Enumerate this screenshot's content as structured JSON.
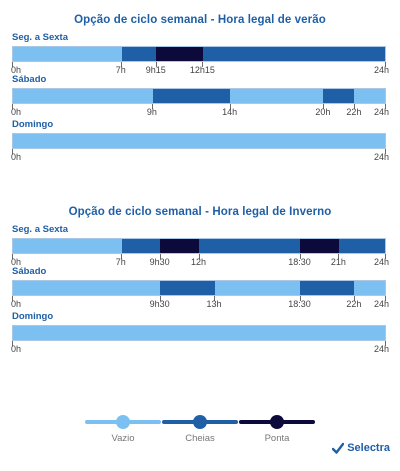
{
  "colors": {
    "vazio": "#7cc0f2",
    "cheias": "#1f5fa6",
    "ponta": "#0b0a3a"
  },
  "legend": [
    {
      "key": "vazio",
      "label": "Vazio"
    },
    {
      "key": "cheias",
      "label": "Cheias"
    },
    {
      "key": "ponta",
      "label": "Ponta"
    }
  ],
  "brand": {
    "name": "Selectra"
  },
  "chart_data": [
    {
      "type": "bar",
      "title": "Opção de ciclo semanal - Hora legal de verão",
      "rows": [
        {
          "label": "Seg. a Sexta",
          "segments": [
            {
              "start": 0,
              "end": 7,
              "period": "vazio"
            },
            {
              "start": 7,
              "end": 9.25,
              "period": "cheias"
            },
            {
              "start": 9.25,
              "end": 12.25,
              "period": "ponta"
            },
            {
              "start": 12.25,
              "end": 24,
              "period": "cheias"
            }
          ],
          "ticks": [
            {
              "value": 0,
              "label": "0h"
            },
            {
              "value": 7,
              "label": "7h"
            },
            {
              "value": 9.25,
              "label": "9h15"
            },
            {
              "value": 12.25,
              "label": "12h15"
            },
            {
              "value": 24,
              "label": "24h"
            }
          ]
        },
        {
          "label": "Sábado",
          "segments": [
            {
              "start": 0,
              "end": 9,
              "period": "vazio"
            },
            {
              "start": 9,
              "end": 14,
              "period": "cheias"
            },
            {
              "start": 14,
              "end": 20,
              "period": "vazio"
            },
            {
              "start": 20,
              "end": 22,
              "period": "cheias"
            },
            {
              "start": 22,
              "end": 24,
              "period": "vazio"
            }
          ],
          "ticks": [
            {
              "value": 0,
              "label": "0h"
            },
            {
              "value": 9,
              "label": "9h"
            },
            {
              "value": 14,
              "label": "14h"
            },
            {
              "value": 20,
              "label": "20h"
            },
            {
              "value": 22,
              "label": "22h"
            },
            {
              "value": 24,
              "label": "24h"
            }
          ]
        },
        {
          "label": "Domingo",
          "segments": [
            {
              "start": 0,
              "end": 24,
              "period": "vazio"
            }
          ],
          "ticks": [
            {
              "value": 0,
              "label": "0h"
            },
            {
              "value": 24,
              "label": "24h"
            }
          ]
        }
      ]
    },
    {
      "type": "bar",
      "title": "Opção de ciclo semanal - Hora legal de Inverno",
      "rows": [
        {
          "label": "Seg. a Sexta",
          "segments": [
            {
              "start": 0,
              "end": 7,
              "period": "vazio"
            },
            {
              "start": 7,
              "end": 9.5,
              "period": "cheias"
            },
            {
              "start": 9.5,
              "end": 12,
              "period": "ponta"
            },
            {
              "start": 12,
              "end": 18.5,
              "period": "cheias"
            },
            {
              "start": 18.5,
              "end": 21,
              "period": "ponta"
            },
            {
              "start": 21,
              "end": 24,
              "period": "cheias"
            }
          ],
          "ticks": [
            {
              "value": 0,
              "label": "0h"
            },
            {
              "value": 7,
              "label": "7h"
            },
            {
              "value": 9.5,
              "label": "9h30"
            },
            {
              "value": 12,
              "label": "12h"
            },
            {
              "value": 18.5,
              "label": "18:30"
            },
            {
              "value": 21,
              "label": "21h"
            },
            {
              "value": 24,
              "label": "24h"
            }
          ]
        },
        {
          "label": "Sábado",
          "segments": [
            {
              "start": 0,
              "end": 9.5,
              "period": "vazio"
            },
            {
              "start": 9.5,
              "end": 13,
              "period": "cheias"
            },
            {
              "start": 13,
              "end": 18.5,
              "period": "vazio"
            },
            {
              "start": 18.5,
              "end": 22,
              "period": "cheias"
            },
            {
              "start": 22,
              "end": 24,
              "period": "vazio"
            }
          ],
          "ticks": [
            {
              "value": 0,
              "label": "0h"
            },
            {
              "value": 9.5,
              "label": "9h30"
            },
            {
              "value": 13,
              "label": "13h"
            },
            {
              "value": 18.5,
              "label": "18:30"
            },
            {
              "value": 22,
              "label": "22h"
            },
            {
              "value": 24,
              "label": "24h"
            }
          ]
        },
        {
          "label": "Domingo",
          "segments": [
            {
              "start": 0,
              "end": 24,
              "period": "vazio"
            }
          ],
          "ticks": [
            {
              "value": 0,
              "label": "0h"
            },
            {
              "value": 24,
              "label": "24h"
            }
          ]
        }
      ]
    }
  ]
}
